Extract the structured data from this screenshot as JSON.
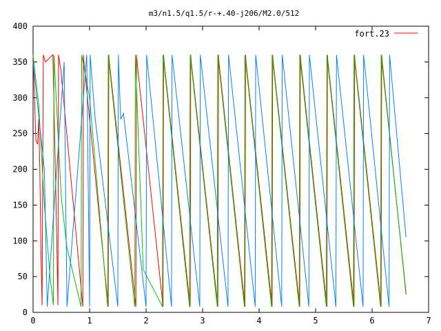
{
  "chart_data": {
    "type": "line",
    "title": "m3/n1.5/q1.5/r-+.40-j206/M2.0/512",
    "xlabel": "",
    "ylabel": "",
    "xlim": [
      0,
      7
    ],
    "ylim": [
      0,
      400
    ],
    "x_ticks": [
      "0",
      "1",
      "2",
      "3",
      "4",
      "5",
      "6",
      "7"
    ],
    "y_ticks": [
      "0",
      "50",
      "100",
      "150",
      "200",
      "250",
      "300",
      "350",
      "400"
    ],
    "legend": {
      "position": "top-right",
      "entries": [
        "fort.23"
      ]
    },
    "grid": false,
    "colors": {
      "fort.23": "#ff0000",
      "series_green": "#00c000",
      "series_blue": "#0080ff",
      "series_dashed_dark": "#805000"
    },
    "series": [
      {
        "name": "fort.23",
        "color": "#ff0000",
        "x": [
          0.0,
          0.05,
          0.08,
          0.1,
          0.12,
          0.14,
          0.16,
          0.18,
          0.22,
          0.35,
          0.4,
          0.42,
          0.44,
          0.45,
          0.47,
          0.49,
          0.88,
          0.89,
          0.9,
          1.33,
          1.34,
          1.35,
          1.82,
          1.83,
          1.84,
          2.3,
          2.31,
          2.32,
          2.78,
          2.79,
          2.8,
          3.27,
          3.28,
          3.29,
          3.75,
          3.76,
          3.77,
          4.23,
          4.24,
          4.25,
          4.72,
          4.73,
          4.74,
          5.2,
          5.21,
          5.22,
          5.68,
          5.69,
          5.7,
          6.16,
          6.17,
          6.18,
          6.6
        ],
        "y": [
          360,
          240,
          235,
          270,
          200,
          80,
          10,
          360,
          350,
          360,
          180,
          100,
          10,
          360,
          350,
          340,
          8,
          360,
          350,
          8,
          360,
          350,
          8,
          360,
          350,
          8,
          360,
          350,
          8,
          360,
          350,
          8,
          360,
          350,
          8,
          360,
          350,
          8,
          360,
          350,
          8,
          360,
          350,
          8,
          360,
          350,
          8,
          360,
          350,
          8,
          360,
          350,
          25
        ]
      },
      {
        "color": "#00c000",
        "x": [
          0.0,
          0.1,
          0.2,
          0.3,
          0.36,
          0.37,
          0.5,
          0.6,
          0.85,
          0.86,
          1.0,
          1.32,
          1.33,
          1.8,
          1.81,
          1.95,
          2.29,
          2.3,
          2.77,
          2.78,
          3.26,
          3.27,
          3.74,
          3.75,
          4.22,
          4.23,
          4.71,
          4.72,
          5.19,
          5.2,
          5.67,
          5.68,
          6.15,
          6.16,
          6.6
        ],
        "y": [
          360,
          290,
          150,
          50,
          10,
          360,
          160,
          90,
          8,
          360,
          300,
          8,
          360,
          8,
          360,
          60,
          8,
          360,
          8,
          360,
          8,
          360,
          8,
          360,
          8,
          360,
          8,
          360,
          8,
          360,
          8,
          360,
          8,
          360,
          28
        ]
      },
      {
        "color": "#0080ff",
        "x": [
          0.0,
          0.2,
          0.25,
          0.55,
          0.6,
          0.95,
          1.0,
          1.01,
          1.1,
          1.5,
          1.51,
          1.55,
          1.6,
          2.0,
          2.01,
          2.45,
          2.46,
          2.95,
          2.96,
          3.45,
          3.46,
          3.93,
          3.94,
          4.4,
          4.41,
          4.88,
          4.89,
          5.36,
          5.37,
          5.84,
          5.85,
          6.3,
          6.31,
          6.6
        ],
        "y": [
          350,
          200,
          8,
          350,
          8,
          360,
          8,
          360,
          270,
          8,
          360,
          270,
          278,
          8,
          360,
          8,
          360,
          8,
          360,
          8,
          360,
          8,
          360,
          8,
          360,
          8,
          360,
          8,
          360,
          8,
          360,
          8,
          360,
          105
        ]
      }
    ]
  }
}
